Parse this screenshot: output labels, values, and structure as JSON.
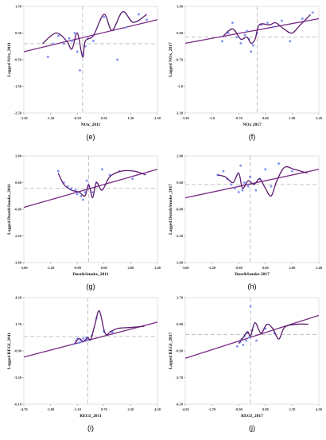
{
  "colors": {
    "fit_line": "#7a2a86",
    "smooth_line": "#5a1a6e",
    "points": "#7c8ff0",
    "ref": "#bbbbbb",
    "axis": "#888888"
  },
  "chart_data": [
    {
      "type": "scatter",
      "panel_label": "(e)",
      "xlabel": "NOx_2011",
      "ylabel": "Lagged NOx_2011",
      "x_ticks": [
        "-2.50",
        "-1.50",
        "-0.50",
        "0.50",
        "1.50",
        "2.50"
      ],
      "y_ticks": [
        "1.50",
        "0.50",
        "-0.50",
        "-1.50",
        "-2.50"
      ],
      "xlim": [
        -2.5,
        2.5
      ],
      "ylim": [
        -2.5,
        1.5
      ],
      "x_ref": -0.3,
      "y_ref": 0.1,
      "fit": [
        [
          -2.5,
          -0.2
        ],
        [
          2.5,
          1.0
        ]
      ],
      "smooth": [
        [
          -1.8,
          0.1
        ],
        [
          -1.3,
          0.5
        ],
        [
          -0.9,
          0.2
        ],
        [
          -0.7,
          -0.1
        ],
        [
          -0.5,
          0.5
        ],
        [
          -0.3,
          -0.4
        ],
        [
          -0.2,
          0.2
        ],
        [
          0.1,
          0.4
        ],
        [
          0.5,
          1.2
        ],
        [
          0.8,
          0.6
        ],
        [
          1.2,
          1.3
        ],
        [
          1.6,
          0.9
        ],
        [
          2.1,
          1.2
        ]
      ],
      "points": [
        [
          -1.6,
          -0.4
        ],
        [
          -1.4,
          0.1
        ],
        [
          -1.2,
          0.4
        ],
        [
          -1.0,
          0.1
        ],
        [
          -0.8,
          0.3
        ],
        [
          -0.7,
          0.2
        ],
        [
          -0.6,
          0.5
        ],
        [
          -0.5,
          -0.2
        ],
        [
          -0.4,
          -0.9
        ],
        [
          -0.3,
          -0.3
        ],
        [
          -0.2,
          0.0
        ],
        [
          -0.1,
          0.3
        ],
        [
          0.1,
          0.2
        ],
        [
          0.5,
          1.1
        ],
        [
          1.0,
          -0.5
        ],
        [
          1.3,
          0.7
        ],
        [
          1.8,
          1.2
        ],
        [
          2.1,
          1.0
        ]
      ]
    },
    {
      "type": "scatter",
      "panel_label": "(f)",
      "xlabel": "NOx 2017",
      "ylabel": "Lagged NOx_2017",
      "x_ticks": [
        "-3.30",
        "-2.0",
        "-0.70",
        "0.60",
        "1.90",
        "3.20"
      ],
      "y_ticks": [
        "1.90",
        "0.60",
        "-0.70",
        "-2.0",
        "-3.30"
      ],
      "xlim": [
        -3.3,
        3.2
      ],
      "ylim": [
        -3.3,
        1.9
      ],
      "x_ref": 0.2,
      "y_ref": 0.4,
      "fit": [
        [
          -3.3,
          0.1
        ],
        [
          3.2,
          1.3
        ]
      ],
      "smooth": [
        [
          -1.5,
          0.4
        ],
        [
          -1.0,
          0.8
        ],
        [
          -0.6,
          0.3
        ],
        [
          -0.3,
          0.4
        ],
        [
          -0.1,
          0.1
        ],
        [
          0.1,
          0.3
        ],
        [
          0.3,
          1.0
        ],
        [
          0.8,
          1.0
        ],
        [
          1.1,
          1.1
        ],
        [
          1.5,
          0.8
        ],
        [
          1.9,
          0.6
        ],
        [
          2.3,
          1.0
        ],
        [
          2.8,
          1.5
        ]
      ],
      "points": [
        [
          -1.5,
          0.2
        ],
        [
          -1.2,
          0.6
        ],
        [
          -1.0,
          1.1
        ],
        [
          -0.8,
          0.4
        ],
        [
          -0.6,
          0.1
        ],
        [
          -0.4,
          0.5
        ],
        [
          -0.3,
          0.7
        ],
        [
          -0.2,
          0.3
        ],
        [
          -0.1,
          -0.3
        ],
        [
          0.0,
          0.0
        ],
        [
          0.2,
          0.6
        ],
        [
          0.4,
          1.0
        ],
        [
          0.7,
          1.1
        ],
        [
          1.0,
          0.9
        ],
        [
          1.4,
          1.2
        ],
        [
          1.8,
          0.2
        ],
        [
          2.4,
          1.3
        ],
        [
          2.9,
          1.6
        ]
      ]
    },
    {
      "type": "scatter",
      "panel_label": "(g)",
      "xlabel": "Dust&Smoke_2011",
      "ylabel": "Lagged Dust&Smoke_2011",
      "x_ticks": [
        "-3.60",
        "-2.20",
        "-0.80",
        "0.60",
        "2.00",
        "3.40"
      ],
      "y_ticks": [
        "2.00",
        "0.60",
        "-0.80",
        "-2.20",
        "-3.60"
      ],
      "xlim": [
        -3.6,
        3.4
      ],
      "ylim": [
        -3.6,
        2.0
      ],
      "x_ref": -0.2,
      "y_ref": 0.3,
      "fit": [
        [
          -3.6,
          -0.7
        ],
        [
          3.4,
          1.3
        ]
      ],
      "smooth": [
        [
          -1.8,
          1.1
        ],
        [
          -1.5,
          0.5
        ],
        [
          -1.1,
          0.2
        ],
        [
          -0.7,
          0.1
        ],
        [
          -0.4,
          -0.1
        ],
        [
          -0.2,
          0.5
        ],
        [
          0.0,
          -0.2
        ],
        [
          0.2,
          0.6
        ],
        [
          0.5,
          0.2
        ],
        [
          0.9,
          0.9
        ],
        [
          1.5,
          1.2
        ],
        [
          2.2,
          1.2
        ],
        [
          2.8,
          1.0
        ]
      ],
      "points": [
        [
          -1.8,
          1.2
        ],
        [
          -1.5,
          0.6
        ],
        [
          -1.3,
          0.4
        ],
        [
          -1.1,
          0.3
        ],
        [
          -0.9,
          0.2
        ],
        [
          -0.8,
          0.0
        ],
        [
          -0.6,
          -0.1
        ],
        [
          -0.5,
          -0.3
        ],
        [
          -0.4,
          0.1
        ],
        [
          -0.3,
          0.7
        ],
        [
          -0.2,
          0.4
        ],
        [
          0.0,
          0.1
        ],
        [
          0.2,
          0.6
        ],
        [
          0.5,
          1.3
        ],
        [
          0.9,
          1.0
        ],
        [
          1.4,
          1.2
        ],
        [
          2.1,
          0.8
        ]
      ]
    },
    {
      "type": "scatter",
      "panel_label": "(h)",
      "xlabel": "Dust&Smoke 2017",
      "ylabel": "Lagged Dust&Smoke_2017",
      "x_ticks": [
        "-3.60",
        "-2.20",
        "-0.80",
        "0.60",
        "2.00",
        "3.40"
      ],
      "y_ticks": [
        "2.00",
        "0.60",
        "-0.80",
        "-2.20",
        "-3.60"
      ],
      "xlim": [
        -3.6,
        3.4
      ],
      "ylim": [
        -3.6,
        2.0
      ],
      "x_ref": -0.2,
      "y_ref": 0.5,
      "fit": [
        [
          -3.6,
          -0.2
        ],
        [
          3.4,
          1.3
        ]
      ],
      "smooth": [
        [
          -1.9,
          1.0
        ],
        [
          -1.5,
          0.9
        ],
        [
          -1.1,
          0.6
        ],
        [
          -0.8,
          1.1
        ],
        [
          -0.6,
          0.3
        ],
        [
          -0.3,
          0.7
        ],
        [
          0.0,
          0.5
        ],
        [
          0.3,
          0.8
        ],
        [
          0.6,
          0.3
        ],
        [
          0.9,
          -0.1
        ],
        [
          1.2,
          0.7
        ],
        [
          1.6,
          1.4
        ],
        [
          2.1,
          1.3
        ],
        [
          2.8,
          1.1
        ]
      ],
      "points": [
        [
          -1.9,
          1.0
        ],
        [
          -1.6,
          1.2
        ],
        [
          -1.4,
          0.8
        ],
        [
          -1.2,
          0.5
        ],
        [
          -1.0,
          0.3
        ],
        [
          -0.8,
          0.1
        ],
        [
          -0.7,
          1.5
        ],
        [
          -0.6,
          0.2
        ],
        [
          -0.5,
          0.6
        ],
        [
          -0.3,
          0.4
        ],
        [
          -0.2,
          0.9
        ],
        [
          0.1,
          0.2
        ],
        [
          0.3,
          0.8
        ],
        [
          0.6,
          1.3
        ],
        [
          0.9,
          0.4
        ],
        [
          1.3,
          1.6
        ],
        [
          2.0,
          1.2
        ]
      ]
    },
    {
      "type": "scatter",
      "panel_label": "(i)",
      "xlabel": "REGI_2011",
      "ylabel": "Lagged REGI_2011",
      "x_ticks": [
        "-4.70",
        "-2.90",
        "-1.10",
        "0.70",
        "2.50",
        "4.50"
      ],
      "y_ticks": [
        "4.30",
        "1.70",
        "-0.90",
        "-3.50",
        "-6.10"
      ],
      "xlim": [
        -4.7,
        4.5
      ],
      "ylim": [
        -6.1,
        4.3
      ],
      "x_ref": -0.3,
      "y_ref": 0.5,
      "fit": [
        [
          -4.7,
          -1.5
        ],
        [
          4.5,
          1.9
        ]
      ],
      "smooth": [
        [
          -1.2,
          -0.2
        ],
        [
          -0.9,
          0.3
        ],
        [
          -0.6,
          0.0
        ],
        [
          -0.3,
          0.4
        ],
        [
          -0.1,
          0.2
        ],
        [
          0.2,
          1.7
        ],
        [
          0.5,
          3.0
        ],
        [
          0.9,
          0.8
        ],
        [
          1.3,
          1.0
        ],
        [
          1.8,
          1.3
        ],
        [
          2.8,
          1.4
        ],
        [
          3.6,
          1.5
        ]
      ],
      "points": [
        [
          -1.2,
          -0.2
        ],
        [
          -1.1,
          0.1
        ],
        [
          -1.0,
          0.3
        ],
        [
          -0.9,
          -0.1
        ],
        [
          -0.8,
          0.2
        ],
        [
          -0.7,
          0.0
        ],
        [
          -0.6,
          0.3
        ],
        [
          -0.5,
          0.1
        ],
        [
          -0.4,
          0.4
        ],
        [
          -0.3,
          0.2
        ],
        [
          0.0,
          0.6
        ],
        [
          0.3,
          2.3
        ],
        [
          0.8,
          1.0
        ],
        [
          1.4,
          0.9
        ]
      ]
    },
    {
      "type": "scatter",
      "panel_label": "(j)",
      "xlabel": "REGI_2017",
      "ylabel": "Lagged REGI_2017",
      "x_ticks": [
        "-4.50",
        "-2.70",
        "-0.90",
        "0.90",
        "2.70",
        "4.50"
      ],
      "y_ticks": [
        "2.70",
        "0.90",
        "-0.90",
        "-2.70",
        "-4.50"
      ],
      "xlim": [
        -4.5,
        4.5
      ],
      "ylim": [
        -4.5,
        2.7
      ],
      "x_ref": -0.1,
      "y_ref": 0.2,
      "fit": [
        [
          -4.5,
          -1.4
        ],
        [
          4.5,
          1.5
        ]
      ],
      "smooth": [
        [
          -0.9,
          -0.4
        ],
        [
          -0.6,
          0.0
        ],
        [
          -0.3,
          0.4
        ],
        [
          -0.1,
          0.1
        ],
        [
          0.2,
          1.0
        ],
        [
          0.6,
          0.3
        ],
        [
          1.0,
          0.9
        ],
        [
          1.4,
          0.6
        ],
        [
          1.8,
          -0.1
        ],
        [
          2.2,
          0.7
        ],
        [
          3.0,
          0.9
        ],
        [
          3.8,
          0.9
        ]
      ],
      "points": [
        [
          -1.0,
          -0.6
        ],
        [
          -0.8,
          -0.3
        ],
        [
          -0.7,
          -0.1
        ],
        [
          -0.6,
          -0.5
        ],
        [
          -0.5,
          0.1
        ],
        [
          -0.4,
          -0.2
        ],
        [
          -0.3,
          0.3
        ],
        [
          -0.2,
          0.0
        ],
        [
          -0.1,
          2.1
        ],
        [
          0.0,
          0.5
        ],
        [
          0.3,
          -0.2
        ],
        [
          0.9,
          0.6
        ],
        [
          1.5,
          0.3
        ]
      ]
    }
  ]
}
